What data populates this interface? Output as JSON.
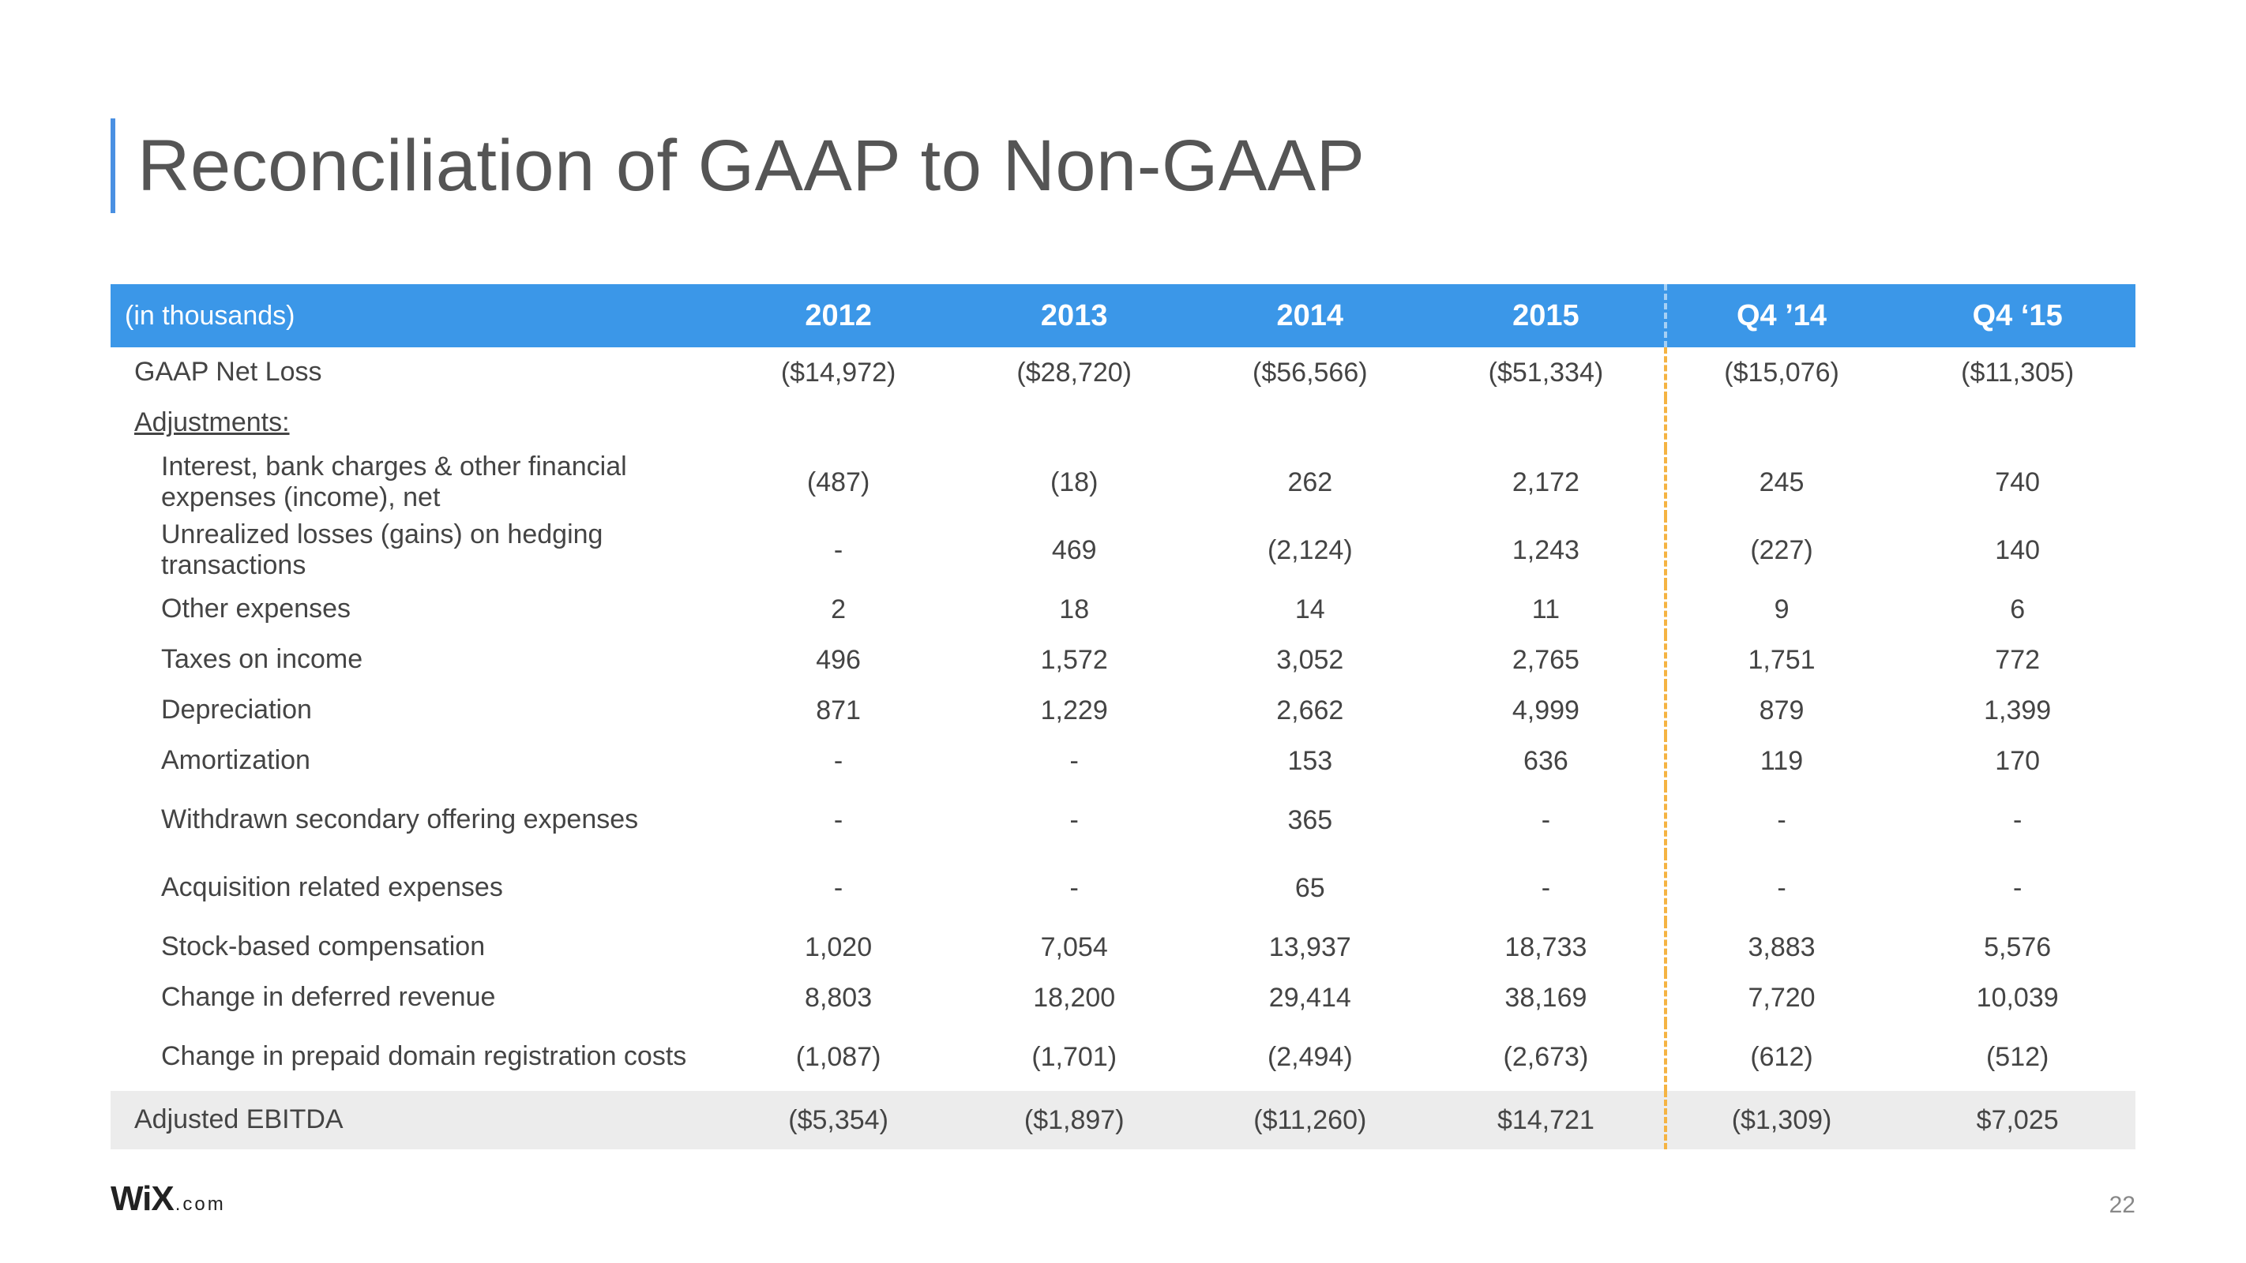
{
  "title": "Reconciliation of GAAP to Non-GAAP",
  "table": {
    "unit_label": "(in thousands)",
    "columns": [
      "2012",
      "2013",
      "2014",
      "2015",
      "Q4 ’­14",
      "Q4 ‘15"
    ],
    "divider_after_col_index": 3,
    "header_bg": "#3b97e8",
    "header_text_color": "#ffffff",
    "divider_color": "#f5b342",
    "total_row_bg": "#ececec",
    "body_text_color": "#444444",
    "header_fontsize_pt": 28,
    "body_fontsize_pt": 26,
    "rows": [
      {
        "type": "data",
        "label": "GAAP Net Loss",
        "values": [
          "($14,972)",
          "($28,720)",
          "($56,566)",
          "($51,334)",
          "($15,076)",
          "($11,305)"
        ]
      },
      {
        "type": "section",
        "label": "Adjustments:"
      },
      {
        "type": "indent",
        "tall": true,
        "label": "Interest, bank charges & other financial expenses (income), net",
        "values": [
          "(487)",
          "(18)",
          "262",
          "2,172",
          "245",
          "740"
        ]
      },
      {
        "type": "indent",
        "tall": true,
        "label": "Unrealized losses (gains) on hedging transactions",
        "values": [
          "-",
          "469",
          "(2,124)",
          "1,243",
          "(227)",
          "140"
        ]
      },
      {
        "type": "indent",
        "label": "Other expenses",
        "values": [
          "2",
          "18",
          "14",
          "11",
          "9",
          "6"
        ]
      },
      {
        "type": "indent",
        "label": "Taxes on income",
        "values": [
          "496",
          "1,572",
          "3,052",
          "2,765",
          "1,751",
          "772"
        ]
      },
      {
        "type": "indent",
        "label": "Depreciation",
        "values": [
          "871",
          "1,229",
          "2,662",
          "4,999",
          "879",
          "1,399"
        ]
      },
      {
        "type": "indent",
        "label": "Amortization",
        "values": [
          "-",
          "-",
          "153",
          "636",
          "119",
          "170"
        ]
      },
      {
        "type": "indent",
        "tall": true,
        "label": "Withdrawn secondary offering expenses",
        "values": [
          "-",
          "-",
          "365",
          "-",
          "-",
          "-"
        ]
      },
      {
        "type": "indent",
        "tall": true,
        "label": "Acquisition related expenses",
        "values": [
          "-",
          "-",
          "65",
          "-",
          "-",
          "-"
        ]
      },
      {
        "type": "indent",
        "label": "Stock-based compensation",
        "values": [
          "1,020",
          "7,054",
          "13,937",
          "18,733",
          "3,883",
          "5,576"
        ]
      },
      {
        "type": "indent",
        "label": "Change in deferred revenue",
        "values": [
          "8,803",
          "18,200",
          "29,414",
          "38,169",
          "7,720",
          "10,039"
        ]
      },
      {
        "type": "indent",
        "tall": true,
        "label": "Change in prepaid domain registration costs",
        "values": [
          "(1,087)",
          "(1,701)",
          "(2,494)",
          "(2,673)",
          "(612)",
          "(512)"
        ]
      },
      {
        "type": "total",
        "label": "Adjusted EBITDA",
        "values": [
          "($5,354)",
          "($1,897)",
          "($11,260)",
          "$14,721",
          "($1,309)",
          "$7,025"
        ]
      }
    ]
  },
  "footer": {
    "logo_main": "WiX",
    "logo_suffix": ".com",
    "page_number": "22"
  },
  "colors": {
    "title_accent": "#4a90e2",
    "title_text": "#555555",
    "background": "#ffffff"
  },
  "typography": {
    "title_fontsize_pt": 69,
    "title_weight": 200,
    "body_family": "Helvetica Neue"
  }
}
